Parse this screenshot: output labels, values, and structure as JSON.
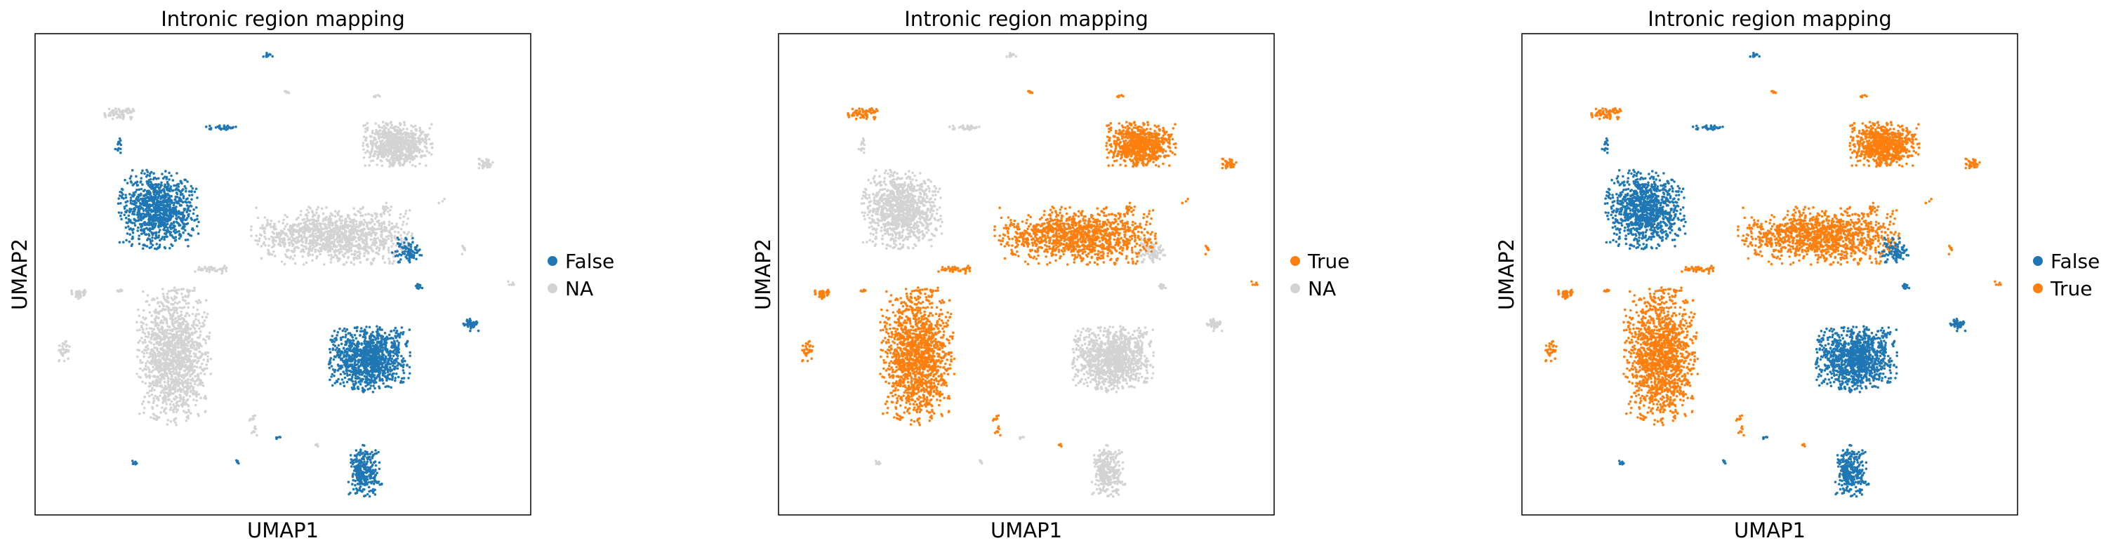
{
  "chart_data": [
    {
      "type": "scatter",
      "title": "Intronic region mapping",
      "xlabel": "UMAP1",
      "ylabel": "UMAP2",
      "xlim": [
        0,
        100
      ],
      "ylim": [
        0,
        100
      ],
      "grid": false,
      "legend": "right",
      "legend_entries": [
        {
          "label": "False",
          "color": "#1f77b4"
        },
        {
          "label": "NA",
          "color": "#d3d3d3"
        }
      ]
    },
    {
      "type": "scatter",
      "title": "Intronic region mapping",
      "xlabel": "UMAP1",
      "ylabel": "UMAP2",
      "xlim": [
        0,
        100
      ],
      "ylim": [
        0,
        100
      ],
      "grid": false,
      "legend": "right",
      "legend_entries": [
        {
          "label": "True",
          "color": "#ff7f0e"
        },
        {
          "label": "NA",
          "color": "#d3d3d3"
        }
      ]
    },
    {
      "type": "scatter",
      "title": "Intronic region mapping",
      "xlabel": "UMAP1",
      "ylabel": "UMAP2",
      "xlim": [
        0,
        100
      ],
      "ylim": [
        0,
        100
      ],
      "grid": false,
      "legend": "right",
      "legend_entries": [
        {
          "label": "False",
          "color": "#1f77b4"
        },
        {
          "label": "True",
          "color": "#ff7f0e"
        }
      ]
    }
  ],
  "clusters": [
    {
      "cx": 47,
      "cy": 95.5,
      "rx": 0.9,
      "ry": 0.6,
      "n": 12,
      "labels": [
        "False",
        "NA",
        "False"
      ]
    },
    {
      "cx": 17,
      "cy": 83.5,
      "rx": 3.5,
      "ry": 1.3,
      "n": 70,
      "labels": [
        "NA",
        "True",
        "True"
      ]
    },
    {
      "cx": 51,
      "cy": 88,
      "rx": 0.7,
      "ry": 0.5,
      "n": 5,
      "labels": [
        "NA",
        "True",
        "True"
      ]
    },
    {
      "cx": 69,
      "cy": 87,
      "rx": 0.7,
      "ry": 0.5,
      "n": 5,
      "labels": [
        "NA",
        "True",
        "True"
      ]
    },
    {
      "cx": 73,
      "cy": 77,
      "rx": 6.5,
      "ry": 4.2,
      "n": 750,
      "labels": [
        "NA",
        "True",
        "True"
      ]
    },
    {
      "cx": 38,
      "cy": 80.5,
      "rx": 3.3,
      "ry": 0.5,
      "n": 30,
      "labels": [
        "False",
        "NA",
        "False"
      ]
    },
    {
      "cx": 17,
      "cy": 76.5,
      "rx": 0.8,
      "ry": 1.6,
      "n": 14,
      "labels": [
        "False",
        "NA",
        "False"
      ]
    },
    {
      "cx": 25,
      "cy": 63.5,
      "rx": 7.5,
      "ry": 7.5,
      "n": 1000,
      "labels": [
        "False",
        "NA",
        "False"
      ]
    },
    {
      "cx": 91,
      "cy": 73,
      "rx": 1.5,
      "ry": 1.0,
      "n": 40,
      "labels": [
        "NA",
        "True",
        "True"
      ]
    },
    {
      "cx": 60,
      "cy": 58,
      "rx": 15,
      "ry": 5.5,
      "n": 1150,
      "labels": [
        "NA",
        "True",
        "True"
      ]
    },
    {
      "cx": 70.5,
      "cy": 63.5,
      "rx": 0.8,
      "ry": 1.5,
      "n": 10,
      "labels": [
        "NA",
        "True",
        "True"
      ]
    },
    {
      "cx": 82,
      "cy": 65,
      "rx": 0.6,
      "ry": 0.6,
      "n": 4,
      "labels": [
        "NA",
        "True",
        "True"
      ]
    },
    {
      "cx": 36,
      "cy": 51,
      "rx": 3.5,
      "ry": 0.8,
      "n": 40,
      "labels": [
        "NA",
        "True",
        "True"
      ]
    },
    {
      "cx": 70.5,
      "cy": 56,
      "rx": 1.0,
      "ry": 0.4,
      "n": 8,
      "labels": [
        "NA",
        "True",
        "True"
      ]
    },
    {
      "cx": 75,
      "cy": 55,
      "rx": 2.8,
      "ry": 2.6,
      "n": 90,
      "labels": [
        "False",
        "NA",
        "False"
      ]
    },
    {
      "cx": 86.5,
      "cy": 55,
      "rx": 0.4,
      "ry": 1.0,
      "n": 6,
      "labels": [
        "NA",
        "True",
        "True"
      ]
    },
    {
      "cx": 77.5,
      "cy": 47.5,
      "rx": 0.8,
      "ry": 0.5,
      "n": 12,
      "labels": [
        "False",
        "NA",
        "False"
      ]
    },
    {
      "cx": 96,
      "cy": 48,
      "rx": 0.6,
      "ry": 0.5,
      "n": 5,
      "labels": [
        "NA",
        "True",
        "True"
      ]
    },
    {
      "cx": 9,
      "cy": 46,
      "rx": 1.6,
      "ry": 1.0,
      "n": 45,
      "labels": [
        "NA",
        "True",
        "True"
      ]
    },
    {
      "cx": 17,
      "cy": 46.5,
      "rx": 0.6,
      "ry": 0.4,
      "n": 6,
      "labels": [
        "NA",
        "True",
        "True"
      ]
    },
    {
      "cx": 31,
      "cy": 46.5,
      "rx": 0.6,
      "ry": 0.4,
      "n": 5,
      "labels": [
        "NA",
        "True",
        "True"
      ]
    },
    {
      "cx": 88,
      "cy": 39.5,
      "rx": 1.5,
      "ry": 1.2,
      "n": 45,
      "labels": [
        "False",
        "NA",
        "False"
      ]
    },
    {
      "cx": 6,
      "cy": 34,
      "rx": 1.3,
      "ry": 2.0,
      "n": 30,
      "labels": [
        "NA",
        "True",
        "True"
      ]
    },
    {
      "cx": 28,
      "cy": 33,
      "rx": 6.8,
      "ry": 13,
      "n": 1350,
      "labels": [
        "NA",
        "True",
        "True"
      ]
    },
    {
      "cx": 67.5,
      "cy": 32.5,
      "rx": 7.5,
      "ry": 6.5,
      "n": 1100,
      "labels": [
        "False",
        "NA",
        "False"
      ]
    },
    {
      "cx": 44,
      "cy": 19,
      "rx": 1.0,
      "ry": 2.8,
      "n": 16,
      "labels": [
        "NA",
        "True",
        "True"
      ]
    },
    {
      "cx": 49,
      "cy": 16,
      "rx": 0.7,
      "ry": 0.4,
      "n": 5,
      "labels": [
        "False",
        "NA",
        "False"
      ]
    },
    {
      "cx": 20,
      "cy": 11,
      "rx": 0.7,
      "ry": 0.5,
      "n": 8,
      "labels": [
        "False",
        "NA",
        "False"
      ]
    },
    {
      "cx": 41,
      "cy": 11,
      "rx": 0.6,
      "ry": 0.4,
      "n": 5,
      "labels": [
        "False",
        "NA",
        "False"
      ]
    },
    {
      "cx": 66.5,
      "cy": 9,
      "rx": 3.2,
      "ry": 5.0,
      "n": 300,
      "labels": [
        "False",
        "NA",
        "False"
      ]
    },
    {
      "cx": 57,
      "cy": 14.5,
      "rx": 0.7,
      "ry": 0.4,
      "n": 4,
      "labels": [
        "NA",
        "True",
        "True"
      ]
    }
  ]
}
